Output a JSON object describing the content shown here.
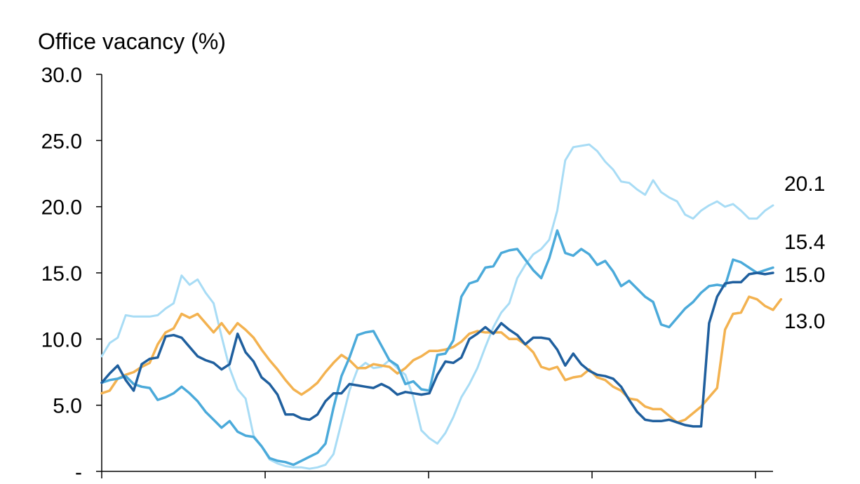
{
  "chart_data": {
    "type": "line",
    "title": "Office vacancy (%)",
    "ylim": [
      0,
      30
    ],
    "y_ticks": [
      {
        "value": 0,
        "label": "-"
      },
      {
        "value": 5,
        "label": "5.0"
      },
      {
        "value": 10,
        "label": "10.0"
      },
      {
        "value": 15,
        "label": "15.0"
      },
      {
        "value": 20,
        "label": "20.0"
      },
      {
        "value": 25,
        "label": "25.0"
      },
      {
        "value": 30,
        "label": "30.0"
      }
    ],
    "x_tick_count": 5,
    "grid": false,
    "legend": "none",
    "series": [
      {
        "color": "#a8dcf5",
        "end_label": "20.1",
        "values": [
          8.7,
          9.7,
          10.1,
          11.8,
          11.7,
          11.7,
          11.7,
          11.8,
          12.3,
          12.7,
          14.8,
          14.1,
          14.5,
          13.5,
          12.7,
          10.2,
          7.8,
          6.2,
          5.5,
          2.7,
          1.9,
          0.9,
          0.6,
          0.4,
          0.3,
          0.3,
          0.2,
          0.3,
          0.5,
          1.3,
          3.7,
          6.1,
          7.7,
          8.2,
          7.8,
          7.9,
          8.4,
          7.8,
          7.3,
          5.6,
          3.1,
          2.5,
          2.1,
          2.9,
          4.1,
          5.6,
          6.6,
          7.8,
          9.4,
          10.9,
          12.0,
          12.7,
          14.6,
          15.6,
          16.4,
          16.8,
          17.5,
          19.7,
          23.5,
          24.5,
          24.6,
          24.7,
          24.2,
          23.4,
          22.8,
          21.9,
          21.8,
          21.3,
          20.9,
          22.0,
          21.1,
          20.7,
          20.4,
          19.4,
          19.1,
          19.7,
          20.1,
          20.4,
          20.0,
          20.2,
          19.7,
          19.1,
          19.1,
          19.7,
          20.1
        ]
      },
      {
        "color": "#f3b250",
        "end_label": "13.0",
        "values": [
          5.9,
          6.1,
          7.0,
          7.3,
          7.5,
          7.9,
          8.2,
          9.6,
          10.5,
          10.8,
          11.9,
          11.6,
          11.9,
          11.2,
          10.5,
          11.2,
          10.4,
          11.2,
          10.7,
          10.1,
          9.2,
          8.4,
          7.7,
          6.9,
          6.2,
          5.8,
          6.2,
          6.7,
          7.5,
          8.2,
          8.8,
          8.4,
          7.8,
          7.8,
          8.1,
          8.0,
          7.9,
          7.4,
          7.8,
          8.4,
          8.7,
          9.1,
          9.1,
          9.2,
          9.4,
          9.8,
          10.4,
          10.6,
          10.5,
          10.5,
          10.5,
          10.0,
          10.0,
          9.6,
          9.0,
          7.9,
          7.7,
          7.9,
          6.9,
          7.1,
          7.2,
          7.7,
          7.1,
          6.9,
          6.4,
          6.1,
          5.5,
          5.4,
          4.9,
          4.7,
          4.7,
          4.2,
          3.7,
          3.9,
          4.4,
          4.9,
          5.6,
          6.3,
          10.7,
          11.9,
          12.0,
          13.2,
          13.0,
          12.5,
          12.2,
          13.0
        ]
      },
      {
        "color": "#4baada",
        "end_label": "15.4",
        "values": [
          6.7,
          6.9,
          7.0,
          7.2,
          6.6,
          6.4,
          6.3,
          5.4,
          5.6,
          5.9,
          6.4,
          5.9,
          5.3,
          4.5,
          3.9,
          3.3,
          3.8,
          3.0,
          2.7,
          2.6,
          1.9,
          1.0,
          0.8,
          0.7,
          0.5,
          0.8,
          1.1,
          1.4,
          2.1,
          4.8,
          7.2,
          8.6,
          10.3,
          10.5,
          10.6,
          9.5,
          8.4,
          8.0,
          6.6,
          6.8,
          6.2,
          6.1,
          8.8,
          8.9,
          9.9,
          13.2,
          14.2,
          14.4,
          15.4,
          15.5,
          16.5,
          16.7,
          16.8,
          16.0,
          15.2,
          14.6,
          16.1,
          18.2,
          16.5,
          16.3,
          16.8,
          16.4,
          15.6,
          15.9,
          15.1,
          14.0,
          14.4,
          13.8,
          13.2,
          12.8,
          11.1,
          10.9,
          11.6,
          12.3,
          12.8,
          13.5,
          14.0,
          14.1,
          14.0,
          16.0,
          15.8,
          15.4,
          15.0,
          15.2,
          15.4
        ]
      },
      {
        "color": "#1f5f9e",
        "end_label": "15.0",
        "values": [
          6.7,
          7.4,
          8.0,
          6.9,
          6.1,
          8.1,
          8.5,
          8.6,
          10.2,
          10.3,
          10.1,
          9.4,
          8.7,
          8.4,
          8.2,
          7.7,
          8.1,
          10.4,
          9.0,
          8.3,
          7.1,
          6.6,
          5.8,
          4.3,
          4.3,
          4.0,
          3.9,
          4.3,
          5.3,
          5.9,
          5.9,
          6.6,
          6.5,
          6.4,
          6.3,
          6.6,
          6.3,
          5.8,
          6.0,
          5.9,
          5.8,
          5.9,
          7.3,
          8.3,
          8.2,
          8.6,
          10.0,
          10.4,
          10.9,
          10.4,
          11.2,
          10.7,
          10.3,
          9.6,
          10.1,
          10.1,
          10.0,
          9.2,
          8.0,
          8.9,
          8.1,
          7.6,
          7.3,
          7.2,
          7.0,
          6.4,
          5.4,
          4.5,
          3.9,
          3.8,
          3.8,
          3.9,
          3.7,
          3.5,
          3.4,
          3.4,
          11.2,
          13.2,
          14.2,
          14.3,
          14.3,
          14.9,
          15.0,
          14.9,
          15.0
        ]
      }
    ]
  }
}
